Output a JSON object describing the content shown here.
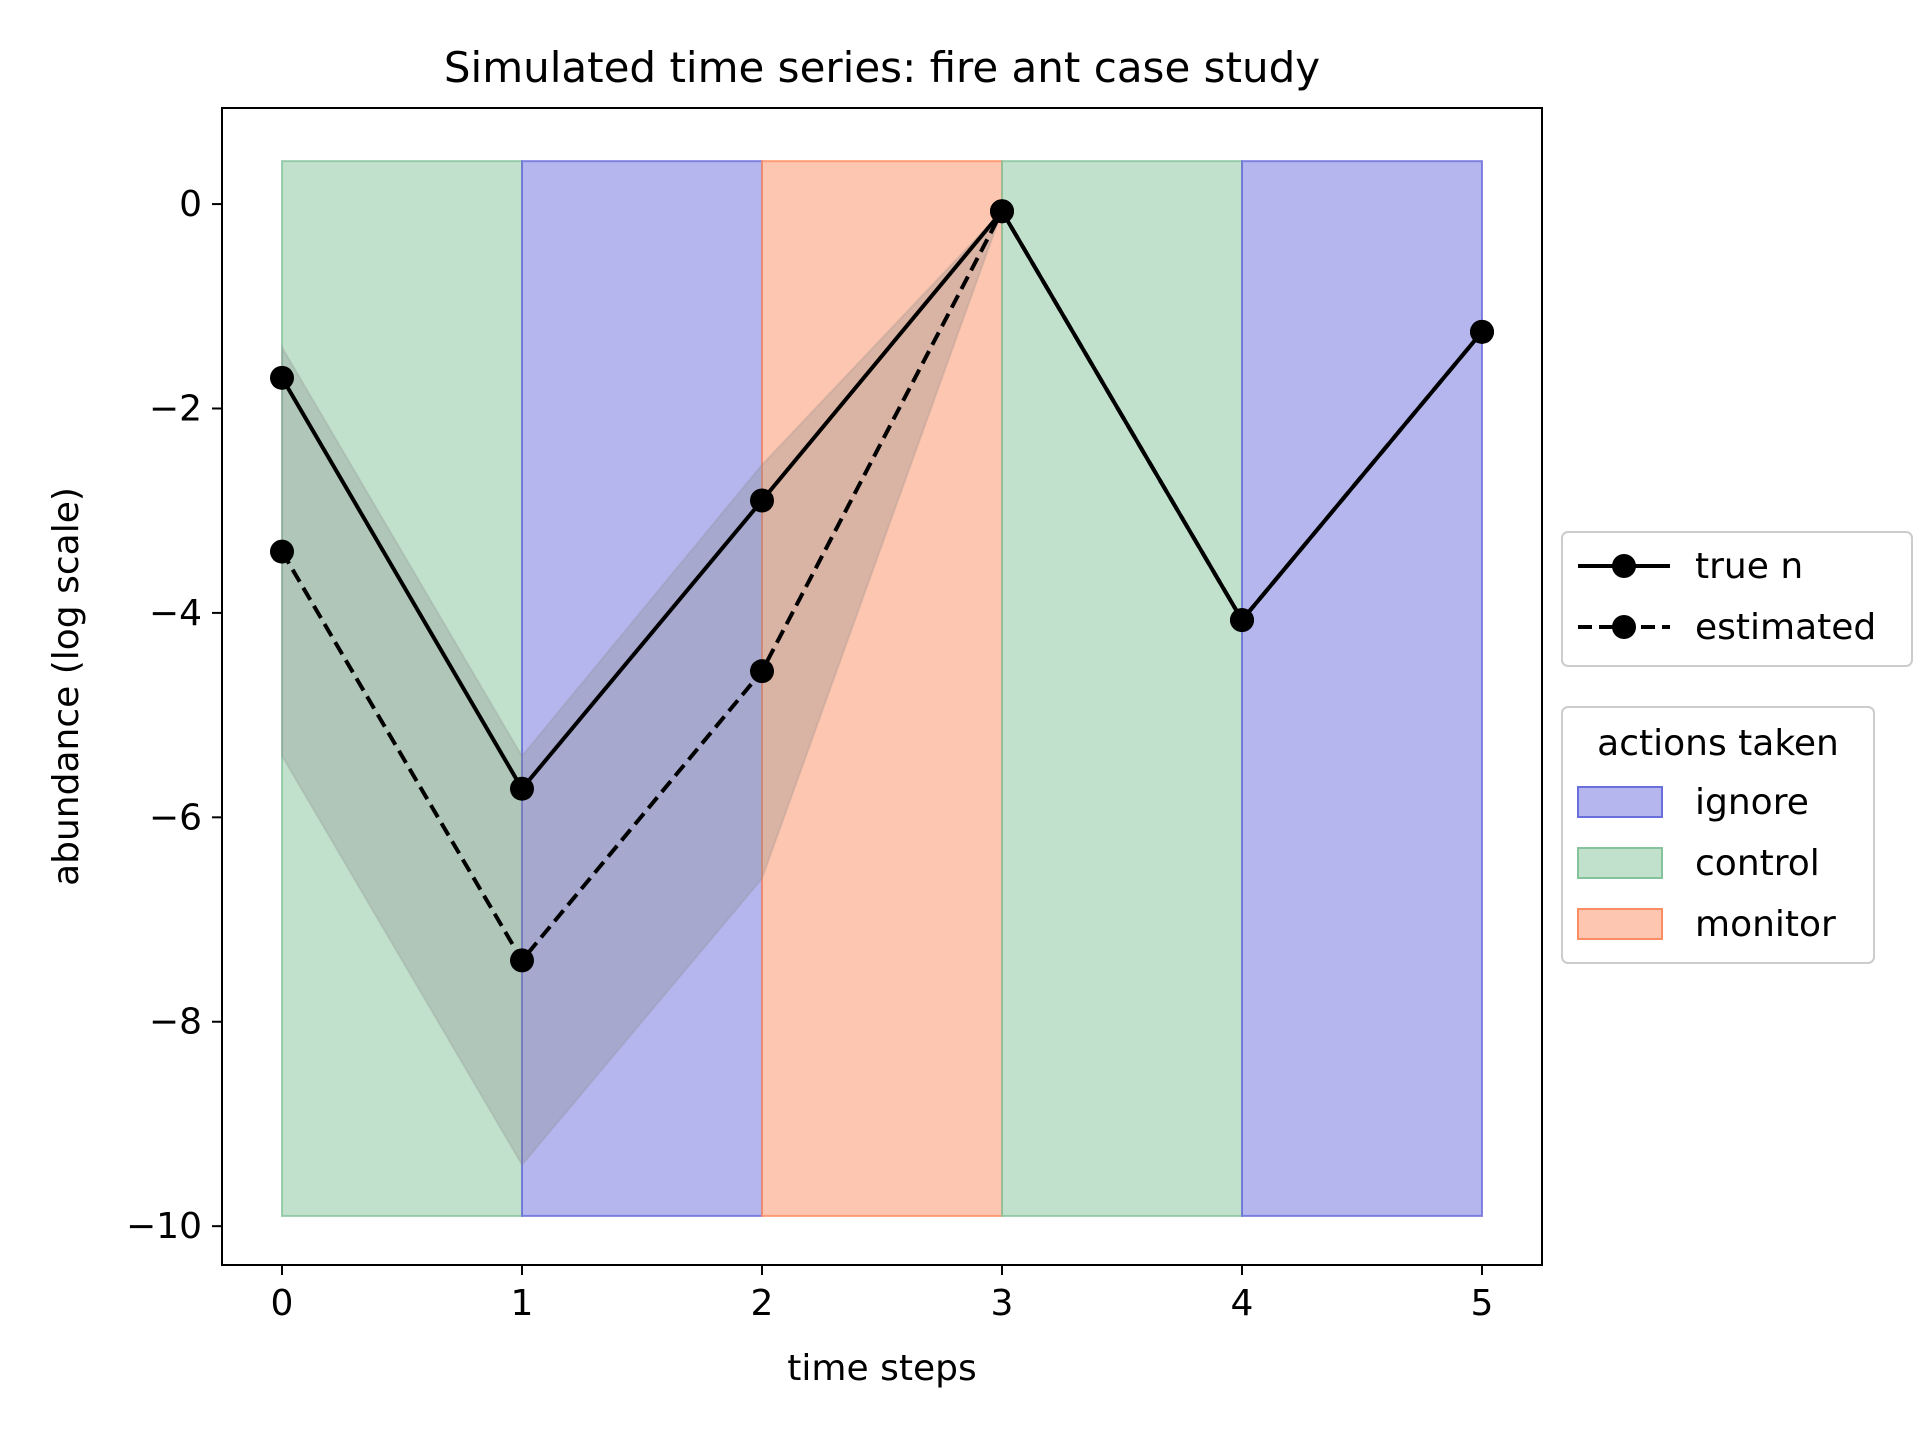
{
  "chart_data": {
    "type": "line",
    "title": "Simulated time series: fire ant case study",
    "xlabel": "time steps",
    "ylabel": "abundance (log scale)",
    "xlim": [
      -0.25,
      5.25
    ],
    "ylim": [
      -10.38,
      0.94
    ],
    "x_ticks": [
      0,
      1,
      2,
      3,
      4,
      5
    ],
    "y_ticks": [
      0,
      -2,
      -4,
      -6,
      -8,
      -10
    ],
    "y_tick_labels": [
      "0",
      "−2",
      "−4",
      "−6",
      "−8",
      "−10"
    ],
    "grid": false,
    "legend_placement": "outside-right",
    "series": [
      {
        "name": "true n",
        "style": "solid",
        "color": "#000000",
        "x": [
          0,
          1,
          2,
          3,
          4,
          5
        ],
        "y": [
          -1.7,
          -5.72,
          -2.9,
          -0.07,
          -4.07,
          -1.25
        ]
      },
      {
        "name": "estimated",
        "style": "dashed",
        "color": "#000000",
        "x": [
          0,
          1,
          2,
          3,
          4,
          5
        ],
        "y": [
          -3.4,
          -7.4,
          -4.57,
          -0.07,
          -4.07,
          -1.25
        ]
      }
    ],
    "uncertainty_band": {
      "x": [
        0,
        1,
        2,
        3,
        4,
        5
      ],
      "upper": [
        -1.4,
        -5.4,
        -2.55,
        -0.07,
        -4.07,
        -1.25
      ],
      "lower": [
        -5.4,
        -9.4,
        -6.6,
        -0.07,
        -4.07,
        -1.25
      ],
      "color": "#888888"
    },
    "y_span": [
      -9.9,
      0.42
    ],
    "legend_title": "actions taken",
    "actions": [
      {
        "name": "ignore",
        "color": "#6a6ddc"
      },
      {
        "name": "control",
        "color": "#86c39c"
      },
      {
        "name": "monitor",
        "color": "#fc8d62"
      }
    ],
    "action_spans": [
      {
        "x0": 0,
        "x1": 1,
        "action": "control"
      },
      {
        "x0": 1,
        "x1": 2,
        "action": "ignore"
      },
      {
        "x0": 2,
        "x1": 3,
        "action": "monitor"
      },
      {
        "x0": 3,
        "x1": 4,
        "action": "control"
      },
      {
        "x0": 4,
        "x1": 5,
        "action": "ignore"
      }
    ]
  }
}
